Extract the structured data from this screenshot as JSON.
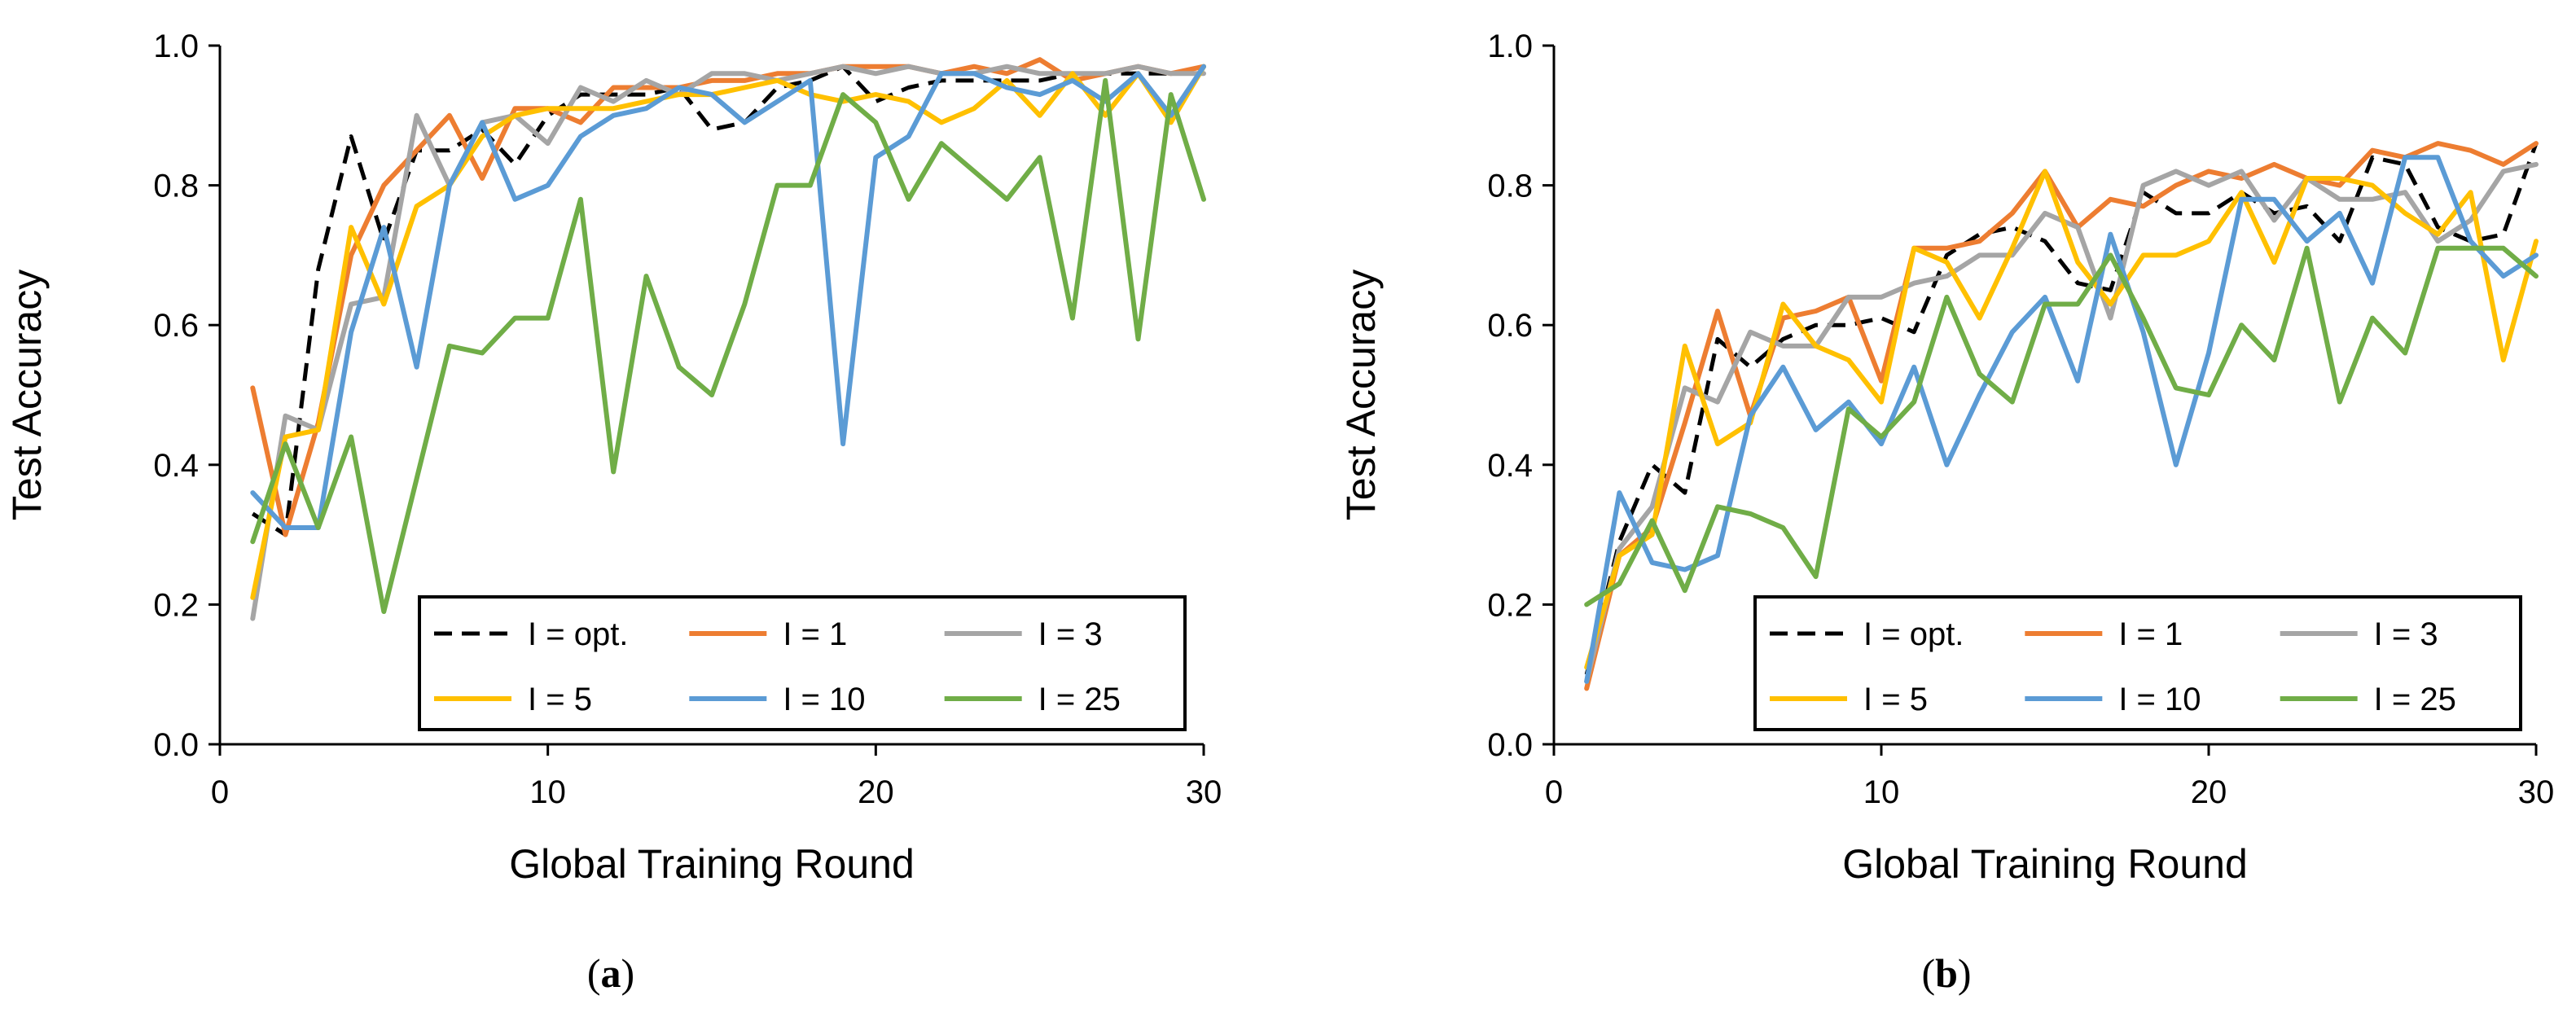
{
  "chart_data": [
    {
      "type": "line",
      "panel_label": "a",
      "xlabel": "Global Training Round",
      "ylabel": "Test Accuracy",
      "xlim": [
        0,
        30
      ],
      "ylim": [
        0,
        1.0
      ],
      "xticks": [
        0,
        10,
        20,
        30
      ],
      "yticks": [
        "0.0",
        "0.2",
        "0.4",
        "0.6",
        "0.8",
        "1.0"
      ],
      "grid": false,
      "legend": "bottom-right",
      "x": [
        1,
        2,
        3,
        4,
        5,
        6,
        7,
        8,
        9,
        10,
        11,
        12,
        13,
        14,
        15,
        16,
        17,
        18,
        19,
        20,
        21,
        22,
        23,
        24,
        25,
        26,
        27,
        28,
        29,
        30
      ],
      "series": [
        {
          "name": "I = opt.",
          "color": "#000000",
          "dashed": true,
          "values": [
            0.33,
            0.3,
            0.68,
            0.87,
            0.72,
            0.85,
            0.85,
            0.88,
            0.83,
            0.9,
            0.93,
            0.93,
            0.93,
            0.94,
            0.88,
            0.89,
            0.94,
            0.95,
            0.97,
            0.92,
            0.94,
            0.95,
            0.95,
            0.95,
            0.95,
            0.96,
            0.96,
            0.96,
            0.96,
            0.97
          ]
        },
        {
          "name": "I = 1",
          "color": "#ED7D31",
          "dashed": false,
          "values": [
            0.51,
            0.3,
            0.46,
            0.7,
            0.8,
            0.85,
            0.9,
            0.81,
            0.91,
            0.91,
            0.89,
            0.94,
            0.94,
            0.94,
            0.95,
            0.95,
            0.96,
            0.96,
            0.97,
            0.97,
            0.97,
            0.96,
            0.97,
            0.96,
            0.98,
            0.95,
            0.96,
            0.97,
            0.96,
            0.97
          ]
        },
        {
          "name": "I = 3",
          "color": "#A5A5A5",
          "dashed": false,
          "values": [
            0.18,
            0.47,
            0.45,
            0.63,
            0.64,
            0.9,
            0.8,
            0.89,
            0.9,
            0.86,
            0.94,
            0.92,
            0.95,
            0.93,
            0.96,
            0.96,
            0.95,
            0.96,
            0.97,
            0.96,
            0.97,
            0.96,
            0.96,
            0.97,
            0.96,
            0.96,
            0.96,
            0.97,
            0.96,
            0.96
          ]
        },
        {
          "name": "I = 5",
          "color": "#FFC000",
          "dashed": false,
          "values": [
            0.21,
            0.44,
            0.45,
            0.74,
            0.63,
            0.77,
            0.8,
            0.87,
            0.9,
            0.91,
            0.91,
            0.91,
            0.92,
            0.93,
            0.93,
            0.94,
            0.95,
            0.93,
            0.92,
            0.93,
            0.92,
            0.89,
            0.91,
            0.95,
            0.9,
            0.96,
            0.9,
            0.96,
            0.89,
            0.97
          ]
        },
        {
          "name": "I = 10",
          "color": "#5B9BD5",
          "dashed": false,
          "values": [
            0.36,
            0.31,
            0.31,
            0.59,
            0.74,
            0.54,
            0.8,
            0.89,
            0.78,
            0.8,
            0.87,
            0.9,
            0.91,
            0.94,
            0.93,
            0.89,
            0.92,
            0.95,
            0.43,
            0.84,
            0.87,
            0.96,
            0.96,
            0.94,
            0.93,
            0.95,
            0.92,
            0.96,
            0.9,
            0.97
          ]
        },
        {
          "name": "I = 25",
          "color": "#70AD47",
          "dashed": false,
          "values": [
            0.29,
            0.43,
            0.31,
            0.44,
            0.19,
            0.38,
            0.57,
            0.56,
            0.61,
            0.61,
            0.78,
            0.39,
            0.67,
            0.54,
            0.5,
            0.63,
            0.8,
            0.8,
            0.93,
            0.89,
            0.78,
            0.86,
            0.82,
            0.78,
            0.84,
            0.61,
            0.95,
            0.58,
            0.93,
            0.78
          ]
        }
      ]
    },
    {
      "type": "line",
      "panel_label": "b",
      "xlabel": "Global Training Round",
      "ylabel": "Test Accuracy",
      "xlim": [
        0,
        30
      ],
      "ylim": [
        0,
        1.0
      ],
      "xticks": [
        0,
        10,
        20,
        30
      ],
      "yticks": [
        "0.0",
        "0.2",
        "0.4",
        "0.6",
        "0.8",
        "1.0"
      ],
      "grid": false,
      "legend": "bottom-right",
      "x": [
        1,
        2,
        3,
        4,
        5,
        6,
        7,
        8,
        9,
        10,
        11,
        12,
        13,
        14,
        15,
        16,
        17,
        18,
        19,
        20,
        21,
        22,
        23,
        24,
        25,
        26,
        27,
        28,
        29,
        30
      ],
      "series": [
        {
          "name": "I = opt.",
          "color": "#000000",
          "dashed": true,
          "values": [
            0.1,
            0.29,
            0.4,
            0.36,
            0.58,
            0.54,
            0.58,
            0.6,
            0.6,
            0.61,
            0.59,
            0.7,
            0.73,
            0.74,
            0.72,
            0.66,
            0.65,
            0.79,
            0.76,
            0.76,
            0.79,
            0.76,
            0.77,
            0.72,
            0.84,
            0.83,
            0.74,
            0.72,
            0.73,
            0.86
          ]
        },
        {
          "name": "I = 1",
          "color": "#ED7D31",
          "dashed": false,
          "values": [
            0.08,
            0.27,
            0.31,
            0.46,
            0.62,
            0.47,
            0.61,
            0.62,
            0.64,
            0.52,
            0.71,
            0.71,
            0.72,
            0.76,
            0.82,
            0.74,
            0.78,
            0.77,
            0.8,
            0.82,
            0.81,
            0.83,
            0.81,
            0.8,
            0.85,
            0.84,
            0.86,
            0.85,
            0.83,
            0.86
          ]
        },
        {
          "name": "I = 3",
          "color": "#A5A5A5",
          "dashed": false,
          "values": [
            0.09,
            0.28,
            0.34,
            0.51,
            0.49,
            0.59,
            0.57,
            0.57,
            0.64,
            0.64,
            0.66,
            0.67,
            0.7,
            0.7,
            0.76,
            0.74,
            0.61,
            0.8,
            0.82,
            0.8,
            0.82,
            0.75,
            0.81,
            0.78,
            0.78,
            0.79,
            0.72,
            0.75,
            0.82,
            0.83
          ]
        },
        {
          "name": "I = 5",
          "color": "#FFC000",
          "dashed": false,
          "values": [
            0.11,
            0.27,
            0.3,
            0.57,
            0.43,
            0.46,
            0.63,
            0.57,
            0.55,
            0.49,
            0.71,
            0.69,
            0.61,
            0.71,
            0.82,
            0.69,
            0.63,
            0.7,
            0.7,
            0.72,
            0.79,
            0.69,
            0.81,
            0.81,
            0.8,
            0.76,
            0.73,
            0.79,
            0.55,
            0.72
          ]
        },
        {
          "name": "I = 10",
          "color": "#5B9BD5",
          "dashed": false,
          "values": [
            0.09,
            0.36,
            0.26,
            0.25,
            0.27,
            0.47,
            0.54,
            0.45,
            0.49,
            0.43,
            0.54,
            0.4,
            0.5,
            0.59,
            0.64,
            0.52,
            0.73,
            0.59,
            0.4,
            0.56,
            0.78,
            0.78,
            0.72,
            0.76,
            0.66,
            0.84,
            0.84,
            0.72,
            0.67,
            0.7
          ]
        },
        {
          "name": "I = 25",
          "color": "#70AD47",
          "dashed": false,
          "values": [
            0.2,
            0.23,
            0.32,
            0.22,
            0.34,
            0.33,
            0.31,
            0.24,
            0.48,
            0.44,
            0.49,
            0.64,
            0.53,
            0.49,
            0.63,
            0.63,
            0.7,
            0.61,
            0.51,
            0.5,
            0.6,
            0.55,
            0.71,
            0.49,
            0.61,
            0.56,
            0.71,
            0.71,
            0.71,
            0.67
          ]
        }
      ]
    }
  ]
}
